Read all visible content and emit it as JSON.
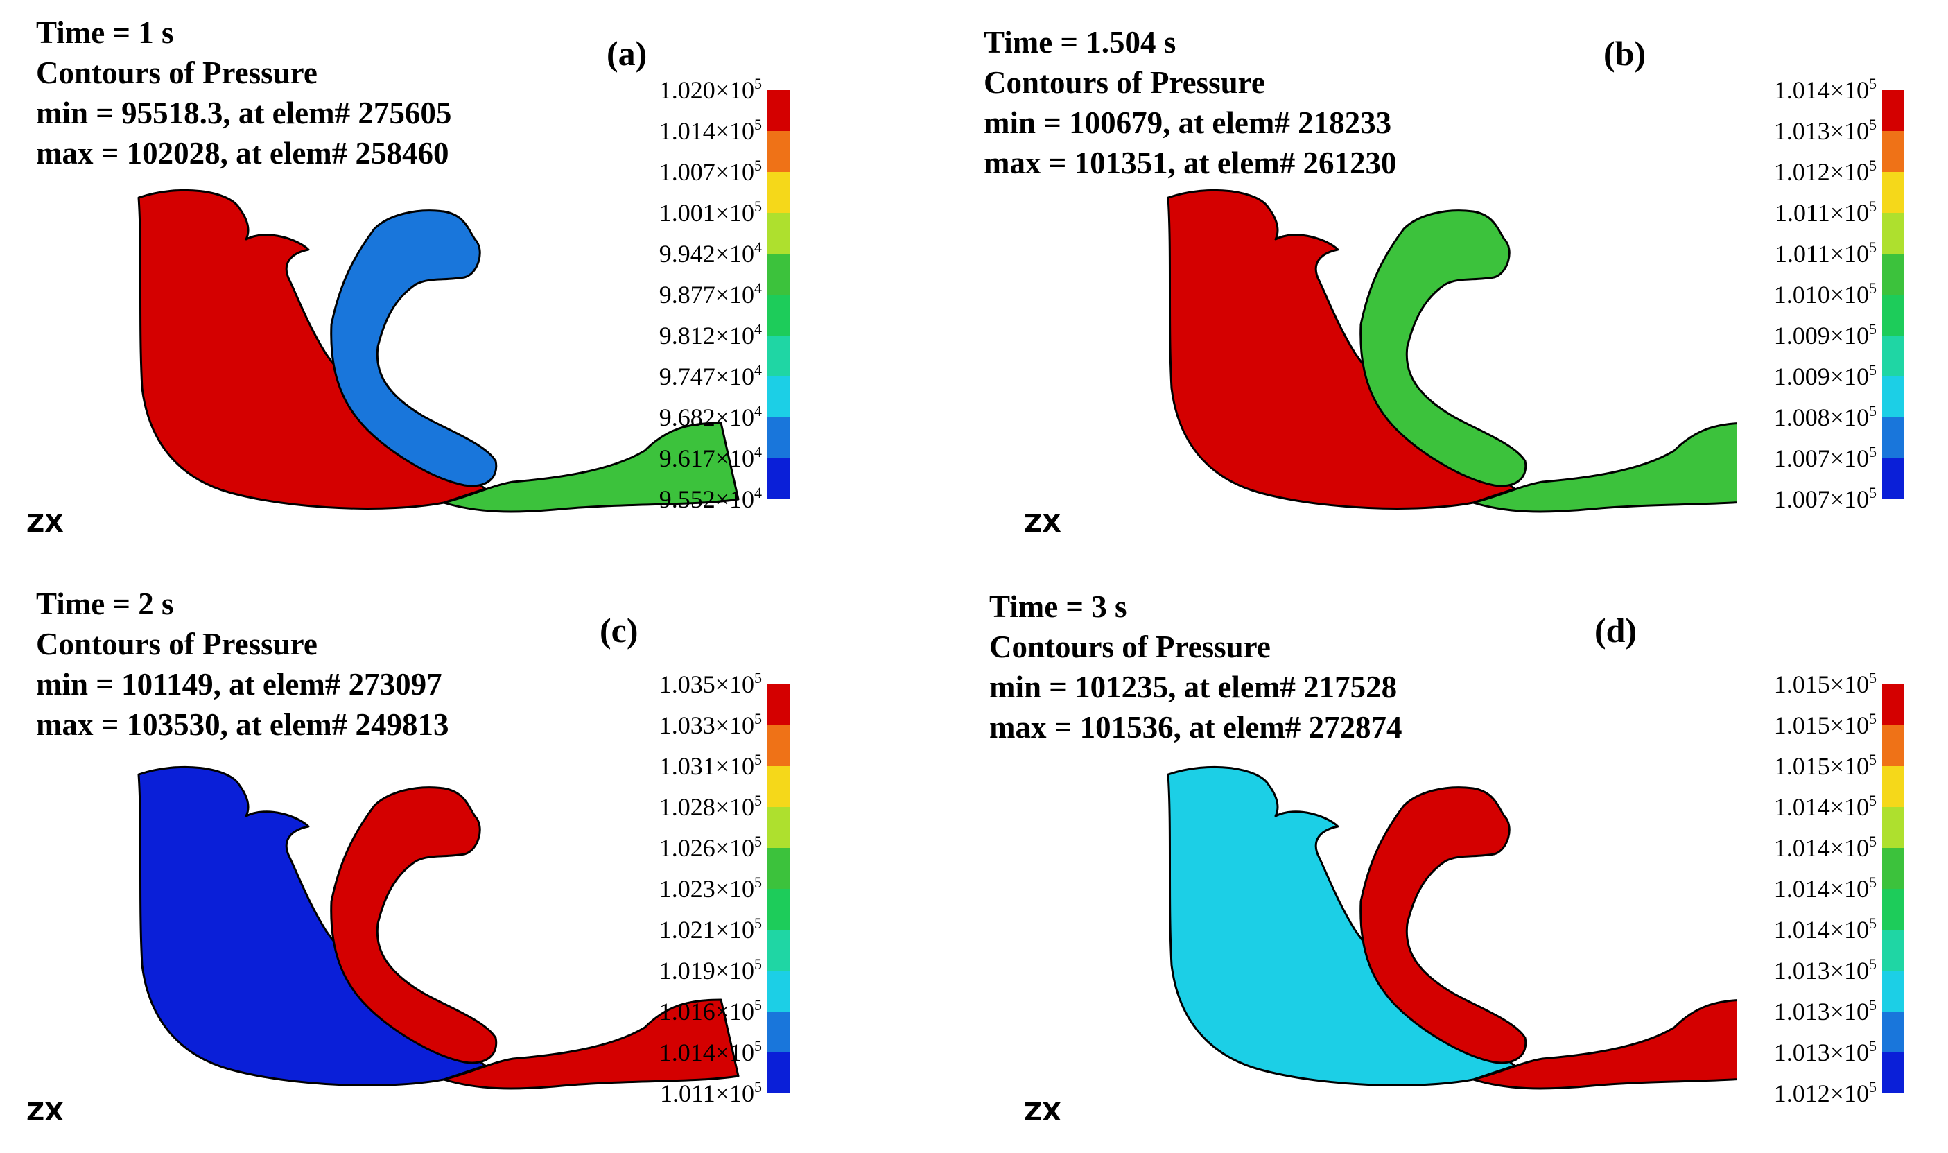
{
  "colors": {
    "red": "#d40000",
    "orange": "#ef7217",
    "yellow": "#f5d81a",
    "lime": "#aee02e",
    "green": "#3cc23c",
    "green2": "#1dcc5a",
    "teal": "#1fd6a4",
    "cyan": "#1ccfe6",
    "skyblue": "#1976db",
    "blue": "#0a1fd8",
    "outline": "#000000"
  },
  "panels": [
    {
      "label": "(a)",
      "time": "Time = 1 s",
      "title": "Contours of Pressure",
      "min": "min = 95518.3, at elem# 275605",
      "max": "max = 102028, at elem# 258460",
      "legend": [
        {
          "m": "1.020",
          "e": "5"
        },
        {
          "m": "1.014",
          "e": "5"
        },
        {
          "m": "1.007",
          "e": "5"
        },
        {
          "m": "1.001",
          "e": "5"
        },
        {
          "m": "9.942",
          "e": "4"
        },
        {
          "m": "9.877",
          "e": "4"
        },
        {
          "m": "9.812",
          "e": "4"
        },
        {
          "m": "9.747",
          "e": "4"
        },
        {
          "m": "9.682",
          "e": "4"
        },
        {
          "m": "9.617",
          "e": "4"
        },
        {
          "m": "9.552",
          "e": "4"
        }
      ],
      "zone_left": "red",
      "zone_channel": "skyblue",
      "zone_right": "green"
    },
    {
      "label": "(b)",
      "time": "Time = 1.504 s",
      "title": "Contours of Pressure",
      "min": "min = 100679, at elem# 218233",
      "max": "max = 101351, at elem# 261230",
      "legend": [
        {
          "m": "1.014",
          "e": "5"
        },
        {
          "m": "1.013",
          "e": "5"
        },
        {
          "m": "1.012",
          "e": "5"
        },
        {
          "m": "1.011",
          "e": "5"
        },
        {
          "m": "1.011",
          "e": "5"
        },
        {
          "m": "1.010",
          "e": "5"
        },
        {
          "m": "1.009",
          "e": "5"
        },
        {
          "m": "1.009",
          "e": "5"
        },
        {
          "m": "1.008",
          "e": "5"
        },
        {
          "m": "1.007",
          "e": "5"
        },
        {
          "m": "1.007",
          "e": "5"
        }
      ],
      "zone_left": "red",
      "zone_channel": "green",
      "zone_right": "green"
    },
    {
      "label": "(c)",
      "time": "Time = 2 s",
      "title": "Contours of Pressure",
      "min": "min = 101149, at elem# 273097",
      "max": "max = 103530, at elem# 249813",
      "legend": [
        {
          "m": "1.035",
          "e": "5"
        },
        {
          "m": "1.033",
          "e": "5"
        },
        {
          "m": "1.031",
          "e": "5"
        },
        {
          "m": "1.028",
          "e": "5"
        },
        {
          "m": "1.026",
          "e": "5"
        },
        {
          "m": "1.023",
          "e": "5"
        },
        {
          "m": "1.021",
          "e": "5"
        },
        {
          "m": "1.019",
          "e": "5"
        },
        {
          "m": "1.016",
          "e": "5"
        },
        {
          "m": "1.014",
          "e": "5"
        },
        {
          "m": "1.011",
          "e": "5"
        }
      ],
      "zone_left": "blue",
      "zone_channel": "red",
      "zone_right": "red"
    },
    {
      "label": "(d)",
      "time": "Time = 3 s",
      "title": "Contours of Pressure",
      "min": "min = 101235, at elem# 217528",
      "max": "max = 101536, at elem# 272874",
      "legend": [
        {
          "m": "1.015",
          "e": "5"
        },
        {
          "m": "1.015",
          "e": "5"
        },
        {
          "m": "1.015",
          "e": "5"
        },
        {
          "m": "1.014",
          "e": "5"
        },
        {
          "m": "1.014",
          "e": "5"
        },
        {
          "m": "1.014",
          "e": "5"
        },
        {
          "m": "1.014",
          "e": "5"
        },
        {
          "m": "1.013",
          "e": "5"
        },
        {
          "m": "1.013",
          "e": "5"
        },
        {
          "m": "1.013",
          "e": "5"
        },
        {
          "m": "1.012",
          "e": "5"
        }
      ],
      "zone_left": "cyan",
      "zone_channel": "red",
      "zone_right": "red"
    }
  ],
  "legend_colors": [
    "red",
    "orange",
    "yellow",
    "lime",
    "green",
    "green2",
    "teal",
    "cyan",
    "skyblue",
    "blue"
  ],
  "axis_glyph": "ZX"
}
